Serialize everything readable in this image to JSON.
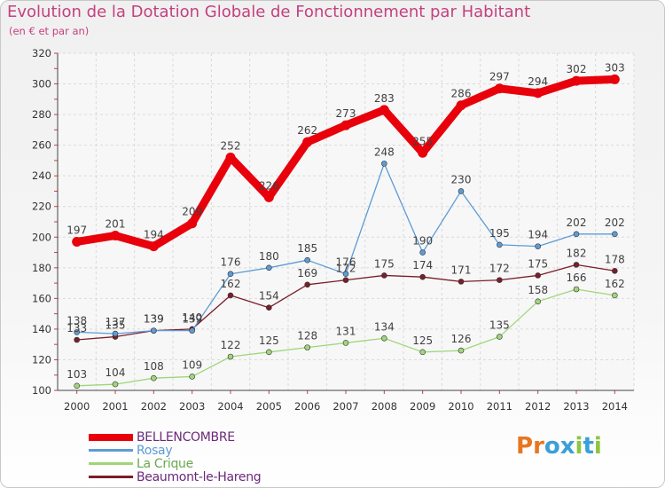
{
  "title": "Evolution de la Dotation Globale de Fonctionnement par Habitant",
  "subtitle": "(en € et par an)",
  "brand": {
    "text": "Proxiti",
    "letter_colors": [
      "#e8761e",
      "#e8761e",
      "#3aa0d8",
      "#3aa0d8",
      "#8cc63f",
      "#3aa0d8",
      "#8cc63f"
    ]
  },
  "chart_data": {
    "type": "line",
    "x": [
      2000,
      2001,
      2002,
      2003,
      2004,
      2005,
      2006,
      2007,
      2008,
      2009,
      2010,
      2011,
      2012,
      2013,
      2014
    ],
    "ylim": [
      100,
      320
    ],
    "yticks": [
      100,
      120,
      140,
      160,
      180,
      200,
      220,
      240,
      260,
      280,
      300,
      320
    ],
    "grid": true,
    "legend": "bottom-left",
    "series": [
      {
        "name": "BELLENCOMBRE",
        "color": "#e8000b",
        "values": [
          197,
          201,
          194,
          209,
          252,
          226,
          262,
          273,
          283,
          255,
          286,
          297,
          294,
          302,
          303
        ],
        "labels": [
          "197",
          "201",
          "194",
          "209",
          "252",
          "226",
          "262",
          "273",
          "283",
          "255",
          "286",
          "297",
          "294",
          "302",
          "303"
        ]
      },
      {
        "name": "Rosay",
        "color": "#5e9bd5",
        "values": [
          138,
          137,
          139,
          139,
          176,
          180,
          185,
          176,
          248,
          190,
          230,
          195,
          194,
          202,
          202
        ],
        "labels": [
          "138",
          "137",
          "139",
          "139",
          "176",
          "180",
          "185",
          "176",
          "248",
          "190",
          "230",
          "195",
          "194",
          "202",
          "202"
        ]
      },
      {
        "name": "La Crique",
        "color": "#9fd67a",
        "values": [
          103,
          104,
          108,
          109,
          122,
          125,
          128,
          131,
          134,
          125,
          126,
          135,
          158,
          166,
          162
        ],
        "labels": [
          "103",
          "104",
          "108",
          "109",
          "122",
          "125",
          "128",
          "131",
          "134",
          "125",
          "126",
          "135",
          "158",
          "166",
          "162"
        ]
      },
      {
        "name": "Beaumont-le-Hareng",
        "color": "#7a1e2a",
        "values": [
          133,
          135,
          139,
          140,
          162,
          154,
          169,
          172,
          175,
          174,
          171,
          172,
          175,
          182,
          178
        ],
        "labels": [
          "133",
          "135",
          "139",
          "140",
          "162",
          "154",
          "169",
          "172",
          "175",
          "174",
          "171",
          "172",
          "175",
          "182",
          "178"
        ]
      }
    ]
  }
}
